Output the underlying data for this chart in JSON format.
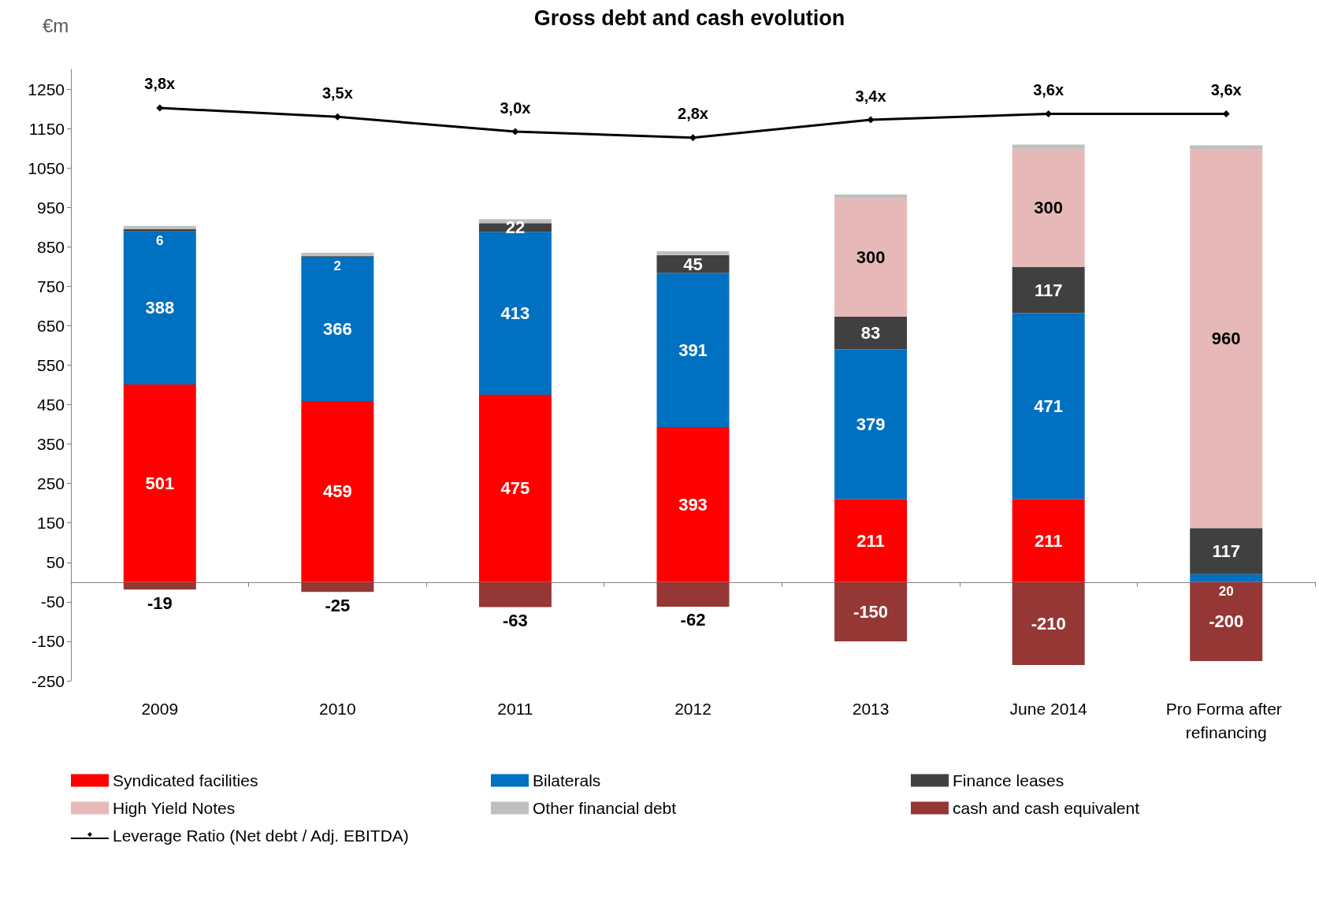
{
  "chart_data": {
    "type": "bar",
    "title": "Gross debt and cash evolution",
    "ylabel": "€m",
    "categories": [
      "2009",
      "2010",
      "2011",
      "2012",
      "2013",
      "June 2014",
      "Pro Forma after refinancing"
    ],
    "stacked": true,
    "ylim": [
      -250,
      1300
    ],
    "yticks": [
      -250,
      -150,
      -50,
      50,
      150,
      250,
      350,
      450,
      550,
      650,
      750,
      850,
      950,
      1050,
      1150,
      1250
    ],
    "y2lim": [
      -15.5,
      5.1
    ],
    "tick_labels": "y",
    "grid": false,
    "legend": "bottom",
    "series": [
      {
        "name": "Syndicated facilities",
        "color": "#ff0000",
        "values": [
          501,
          459,
          475,
          393,
          211,
          211,
          0
        ],
        "value_labels": [
          "501",
          "459",
          "475",
          "393",
          "211",
          "211",
          null
        ]
      },
      {
        "name": "Bilaterals",
        "color": "#0070c0",
        "values": [
          388,
          366,
          413,
          391,
          379,
          471,
          20
        ],
        "value_labels": [
          "388",
          "366",
          "413",
          "391",
          "379",
          "471",
          "20"
        ]
      },
      {
        "name": "Finance leases",
        "color": "#404040",
        "values": [
          6,
          2,
          22,
          45,
          83,
          117,
          117
        ],
        "value_labels": [
          "6",
          "2",
          "22",
          "45",
          "83",
          "117",
          "117"
        ]
      },
      {
        "name": "High Yield Notes",
        "color": "#e6b9b8",
        "values": [
          0,
          0,
          0,
          0,
          300,
          300,
          960
        ],
        "value_labels": [
          null,
          null,
          null,
          null,
          "300",
          "300",
          "960"
        ]
      },
      {
        "name": "Other financial debt",
        "color": "#bfbfbf",
        "values": [
          8,
          8,
          10,
          10,
          10,
          10,
          10
        ]
      },
      {
        "name": "cash and cash equivalent",
        "color": "#953735",
        "values": [
          -19,
          -25,
          -63,
          -62,
          -150,
          -210,
          -200
        ],
        "value_labels": [
          "-19",
          "-25",
          "-63",
          "-62",
          "-150",
          "-210",
          "-200"
        ]
      },
      {
        "name": "Leverage Ratio (Net debt / Adj. EBITDA)",
        "type": "line",
        "axis": "y2",
        "color": "#000000",
        "marker": "diamond",
        "line_style": "solid",
        "values": [
          3.8,
          3.5,
          3.0,
          2.8,
          3.4,
          3.6,
          3.6
        ],
        "value_labels": [
          "3,8x",
          "3,5x",
          "3,0x",
          "2,8x",
          "3,4x",
          "3,6x",
          "3,6x"
        ]
      }
    ]
  }
}
